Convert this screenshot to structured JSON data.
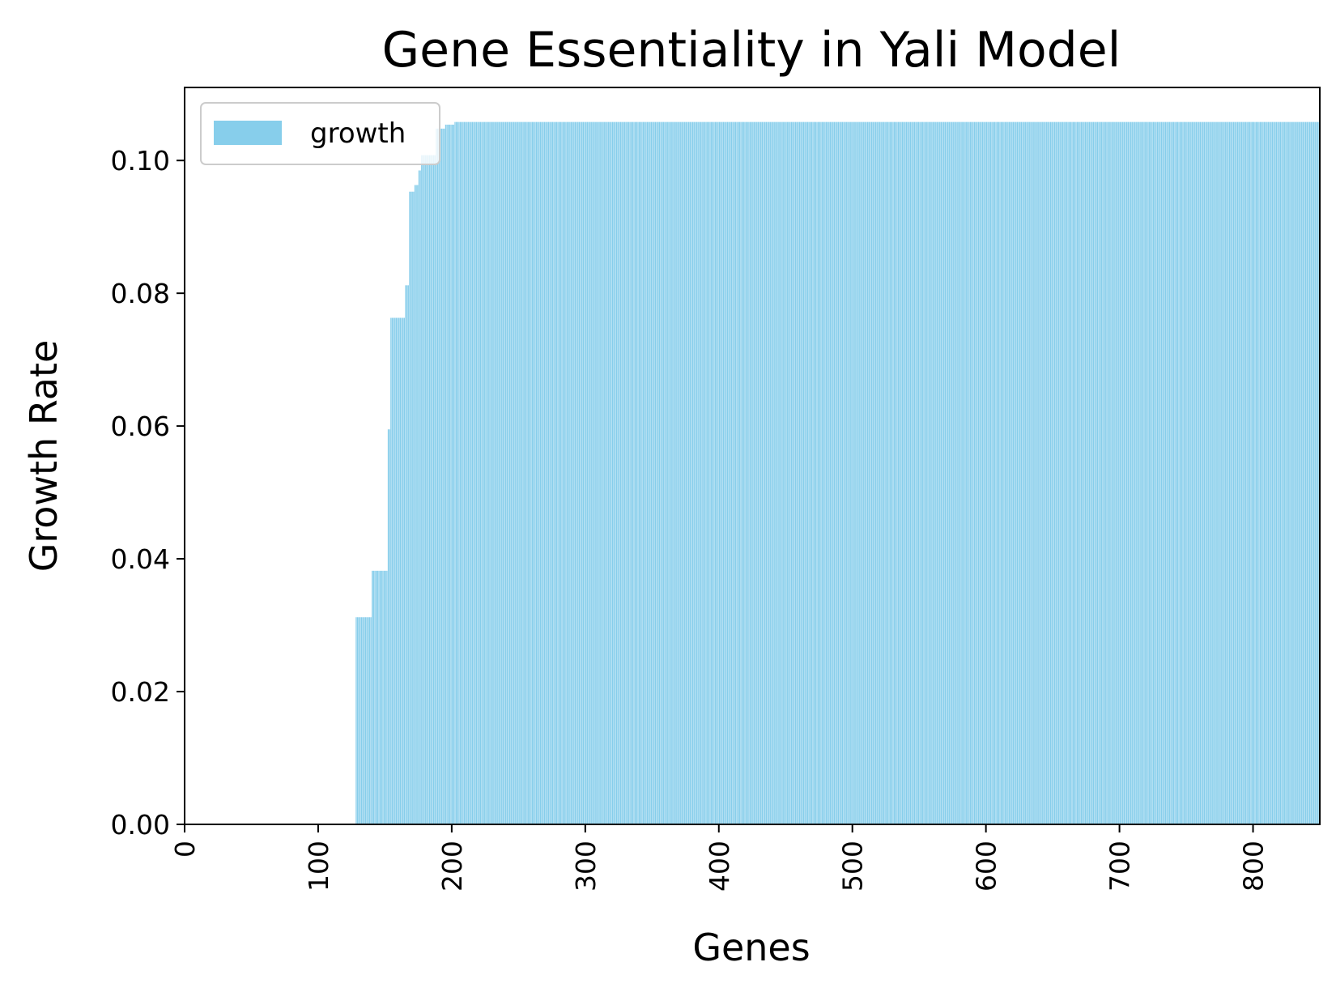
{
  "chart_data": {
    "type": "bar",
    "title": "Gene Essentiality in Yali Model",
    "xlabel": "Genes",
    "ylabel": "Growth Rate",
    "xlim": [
      0,
      850
    ],
    "ylim": [
      0,
      0.111
    ],
    "x_ticks": [
      0,
      100,
      200,
      300,
      400,
      500,
      600,
      700,
      800
    ],
    "x_tick_labels": [
      "0",
      "100",
      "200",
      "300",
      "400",
      "500",
      "600",
      "700",
      "800"
    ],
    "x_tick_rotation": "vertical",
    "y_ticks": [
      0,
      0.02,
      0.04,
      0.06,
      0.08,
      0.1
    ],
    "y_tick_labels": [
      "0.00",
      "0.02",
      "0.04",
      "0.06",
      "0.08",
      "0.10"
    ],
    "grid": false,
    "legend": {
      "position": "top-left",
      "entries": [
        "growth"
      ]
    },
    "bar_color": "#87CEEB",
    "n_genes": 850,
    "series": [
      {
        "name": "growth",
        "segments": [
          {
            "from": 0,
            "to": 127,
            "value": 0.0
          },
          {
            "from": 128,
            "to": 139,
            "value": 0.0312
          },
          {
            "from": 140,
            "to": 151,
            "value": 0.0382
          },
          {
            "from": 152,
            "to": 153,
            "value": 0.0595
          },
          {
            "from": 154,
            "to": 164,
            "value": 0.0763
          },
          {
            "from": 165,
            "to": 167,
            "value": 0.0812
          },
          {
            "from": 168,
            "to": 171,
            "value": 0.0953
          },
          {
            "from": 172,
            "to": 174,
            "value": 0.0963
          },
          {
            "from": 175,
            "to": 176,
            "value": 0.0985
          },
          {
            "from": 177,
            "to": 187,
            "value": 0.1008
          },
          {
            "from": 188,
            "to": 194,
            "value": 0.1048
          },
          {
            "from": 195,
            "to": 201,
            "value": 0.1054
          },
          {
            "from": 202,
            "to": 849,
            "value": 0.1058
          }
        ]
      }
    ]
  }
}
